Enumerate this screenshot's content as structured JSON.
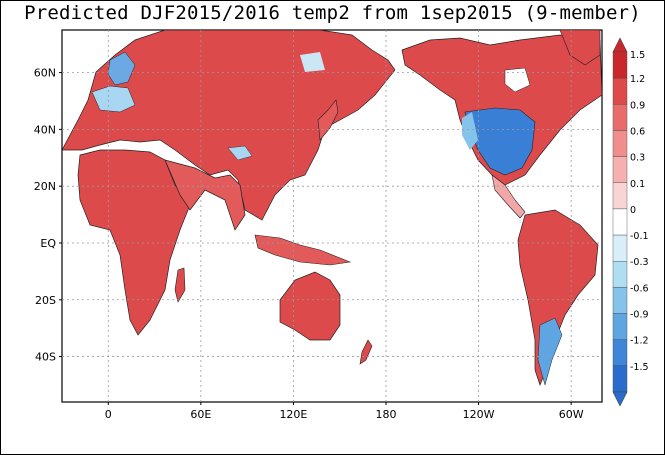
{
  "title": "Predicted DJF2015/2016 temp2 from 1sep2015 (9-member)",
  "map": {
    "lat_labels": [
      "60N",
      "40N",
      "20N",
      "EQ",
      "20S",
      "40S"
    ],
    "lat_values": [
      60,
      40,
      20,
      0,
      -20,
      -40
    ],
    "lon_labels": [
      "0",
      "60E",
      "120E",
      "180",
      "120W",
      "60W"
    ],
    "lon_values": [
      0,
      60,
      120,
      180,
      240,
      300
    ],
    "lon_range": [
      -30,
      320
    ],
    "lat_range": [
      -56,
      75
    ],
    "grid": true
  },
  "colorbar": {
    "labels": [
      "1.5",
      "1.2",
      "0.9",
      "0.6",
      "0.3",
      "0.1",
      "0",
      "-0.1",
      "-0.3",
      "-0.6",
      "-0.9",
      "-1.2",
      "-1.5"
    ],
    "colors": [
      "#c8282c",
      "#dc4a4a",
      "#e96c6c",
      "#f08e8e",
      "#f5b0b0",
      "#fad4d4",
      "#ffffff",
      "#d8eef8",
      "#afddf2",
      "#86c3ea",
      "#5ea5e2",
      "#3e86d8",
      "#2a6ccc"
    ]
  },
  "colors": {
    "warm_strong": "#d93a3c",
    "warm": "#e86666",
    "warm_light": "#f3a6a6",
    "cool_light": "#a9d6f2",
    "cool": "#6aa9e4",
    "cool_strong": "#3a7fd6"
  }
}
